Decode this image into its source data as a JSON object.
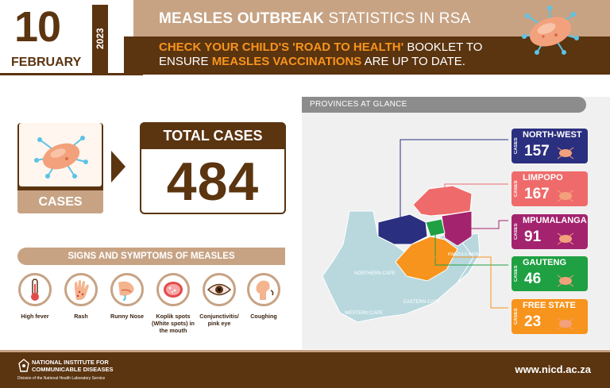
{
  "header": {
    "day": "10",
    "month": "FEBRUARY",
    "year": "2023",
    "title_bold": "MEASLES OUTBREAK",
    "title_light": " STATISTICS IN RSA",
    "sub_1": "CHECK YOUR CHILD'S 'ROAD TO HEALTH'",
    "sub_2": " BOOKLET TO",
    "sub_3": "ENSURE ",
    "sub_4": "MEASLES VACCINATIONS",
    "sub_5": " ARE UP TO DATE."
  },
  "cases": {
    "label": "CASES",
    "total_title": "TOTAL CASES",
    "total_value": "484"
  },
  "symptoms": {
    "title": "SIGNS AND SYMPTOMS OF MEASLES",
    "items": [
      {
        "label": "High fever",
        "icon": "thermometer-icon"
      },
      {
        "label": "Rash",
        "icon": "hand-rash-icon"
      },
      {
        "label": "Runny Nose",
        "icon": "runny-nose-icon"
      },
      {
        "label": "Koplik spots (White spots) in the mouth",
        "icon": "mouth-icon"
      },
      {
        "label": "Conjunctivitis/ pink eye",
        "icon": "eye-icon"
      },
      {
        "label": "Coughing",
        "icon": "cough-icon"
      }
    ]
  },
  "provinces": {
    "title": "PROVINCES AT GLANCE",
    "cases_word": "CASES",
    "items": [
      {
        "name": "NORTH-WEST",
        "cases": "157",
        "color": "#2b2f7f"
      },
      {
        "name": "LIMPOPO",
        "cases": "167",
        "color": "#ef6b6b"
      },
      {
        "name": "MPUMALANGA",
        "cases": "91",
        "color": "#a3236e"
      },
      {
        "name": "GAUTENG",
        "cases": "46",
        "color": "#1fa043"
      },
      {
        "name": "FREE STATE",
        "cases": "23",
        "color": "#f7941d"
      }
    ],
    "map_labels": {
      "northern_cape": "NORTHERN CAPE",
      "western_cape": "WESTERN CAPE",
      "eastern_cape": "EASTERN CAPE",
      "kzn": "KWAZULU-NATAL"
    }
  },
  "footer": {
    "org_name": "NATIONAL INSTITUTE FOR COMMUNICABLE DISEASES",
    "org_division": "Division of the National Health Laboratory Service",
    "website": "www.nicd.ac.za"
  },
  "colors": {
    "brown": "#5b3410",
    "tan": "#c7a384",
    "orange": "#f7941d"
  }
}
